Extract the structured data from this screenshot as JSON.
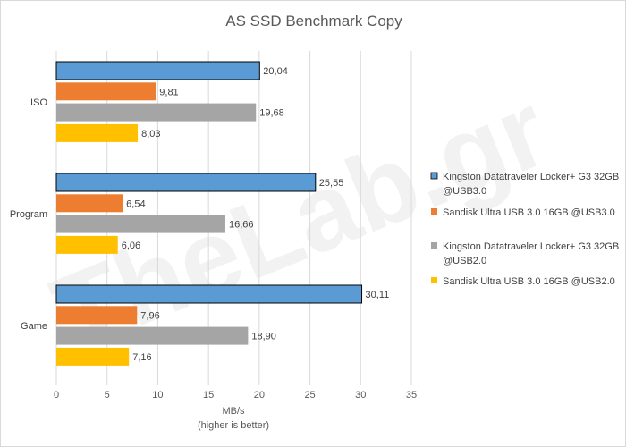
{
  "watermark_text": "TheLab.gr",
  "chart_data": {
    "type": "bar",
    "orientation": "horizontal",
    "title": "AS SSD Benchmark Copy",
    "categories": [
      "ISO",
      "Program",
      "Game"
    ],
    "series": [
      {
        "name": "Kingston Datatraveler Locker+ G3 32GB @USB3.0",
        "values": [
          20.04,
          25.55,
          30.11
        ],
        "labels": [
          "20,04",
          "25,55",
          "30,11"
        ],
        "color": "#5b9bd5"
      },
      {
        "name": "Sandisk Ultra USB 3.0 16GB @USB3.0",
        "values": [
          9.81,
          6.54,
          7.96
        ],
        "labels": [
          "9,81",
          "6,54",
          "7,96"
        ],
        "color": "#ed7d31"
      },
      {
        "name": "Kingston Datatraveler Locker+ G3 32GB @USB2.0",
        "values": [
          19.68,
          16.66,
          18.9
        ],
        "labels": [
          "19,68",
          "16,66",
          "18,90"
        ],
        "color": "#a5a5a5"
      },
      {
        "name": "Sandisk Ultra USB 3.0 16GB @USB2.0",
        "values": [
          8.03,
          6.06,
          7.16
        ],
        "labels": [
          "8,03",
          "6,06",
          "7,16"
        ],
        "color": "#ffc000"
      }
    ],
    "xlim": [
      0,
      35
    ],
    "xticks": [
      "0",
      "5",
      "10",
      "15",
      "20",
      "25",
      "30",
      "35"
    ],
    "xlabel": "MB/s",
    "xlabel_note": "(higher is better)",
    "grid": true,
    "legend_position": "right",
    "highlight_series_index": 0
  }
}
